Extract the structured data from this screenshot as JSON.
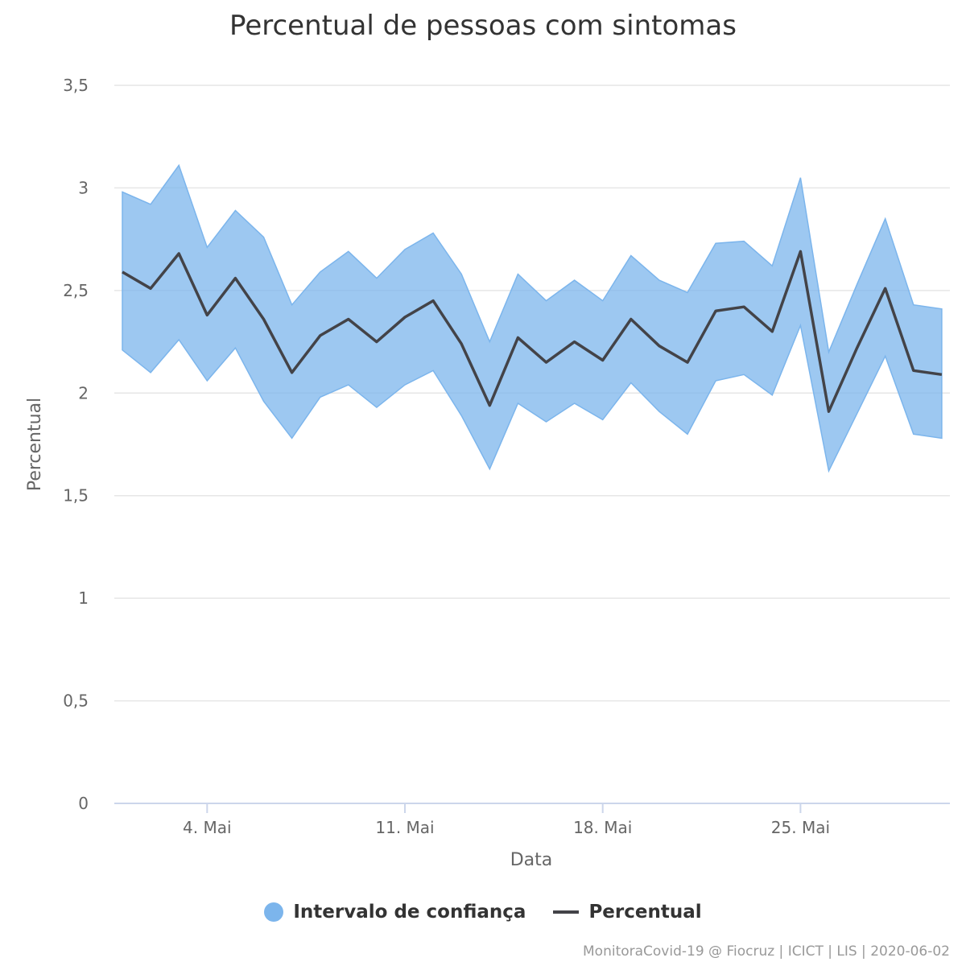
{
  "chart_data": {
    "type": "area",
    "title": "Percentual de pessoas com sintomas",
    "xlabel": "Data",
    "ylabel": "Percentual",
    "ylim": [
      0,
      3.5
    ],
    "yticks": [
      "0",
      "0,5",
      "1",
      "1,5",
      "2",
      "2,5",
      "3",
      "3,5"
    ],
    "xticks": [
      {
        "label": "4. Mai",
        "day": 4
      },
      {
        "label": "11. Mai",
        "day": 11
      },
      {
        "label": "18. Mai",
        "day": 18
      },
      {
        "label": "25. Mai",
        "day": 25
      }
    ],
    "x": [
      1,
      2,
      3,
      4,
      5,
      6,
      7,
      8,
      9,
      10,
      11,
      12,
      13,
      14,
      15,
      16,
      17,
      18,
      19,
      20,
      21,
      22,
      23,
      24,
      25,
      26,
      27,
      28,
      29,
      30
    ],
    "series": [
      {
        "name": "Intervalo de confiança",
        "color": "#7cb5ec",
        "low": [
          2.21,
          2.1,
          2.26,
          2.06,
          2.22,
          1.96,
          1.78,
          1.98,
          2.04,
          1.93,
          2.04,
          2.11,
          1.89,
          1.63,
          1.95,
          1.86,
          1.95,
          1.87,
          2.05,
          1.91,
          1.8,
          2.06,
          2.09,
          1.99,
          2.33,
          1.62,
          1.9,
          2.18,
          1.8,
          1.78
        ],
        "high": [
          2.98,
          2.92,
          3.11,
          2.71,
          2.89,
          2.76,
          2.43,
          2.59,
          2.69,
          2.56,
          2.7,
          2.78,
          2.58,
          2.25,
          2.58,
          2.45,
          2.55,
          2.45,
          2.67,
          2.55,
          2.49,
          2.73,
          2.74,
          2.62,
          3.05,
          2.2,
          2.53,
          2.85,
          2.43,
          2.41
        ]
      },
      {
        "name": "Percentual",
        "color": "#434348",
        "values": [
          2.59,
          2.51,
          2.68,
          2.38,
          2.56,
          2.36,
          2.1,
          2.28,
          2.36,
          2.25,
          2.37,
          2.45,
          2.24,
          1.94,
          2.27,
          2.15,
          2.25,
          2.16,
          2.36,
          2.23,
          2.15,
          2.4,
          2.42,
          2.3,
          2.69,
          1.91,
          2.22,
          2.51,
          2.11,
          2.09
        ]
      }
    ],
    "legend_position": "bottom-center",
    "grid": true
  },
  "credits": "MonitoraCovid-19 @ Fiocruz | ICICT | LIS | 2020-06-02"
}
